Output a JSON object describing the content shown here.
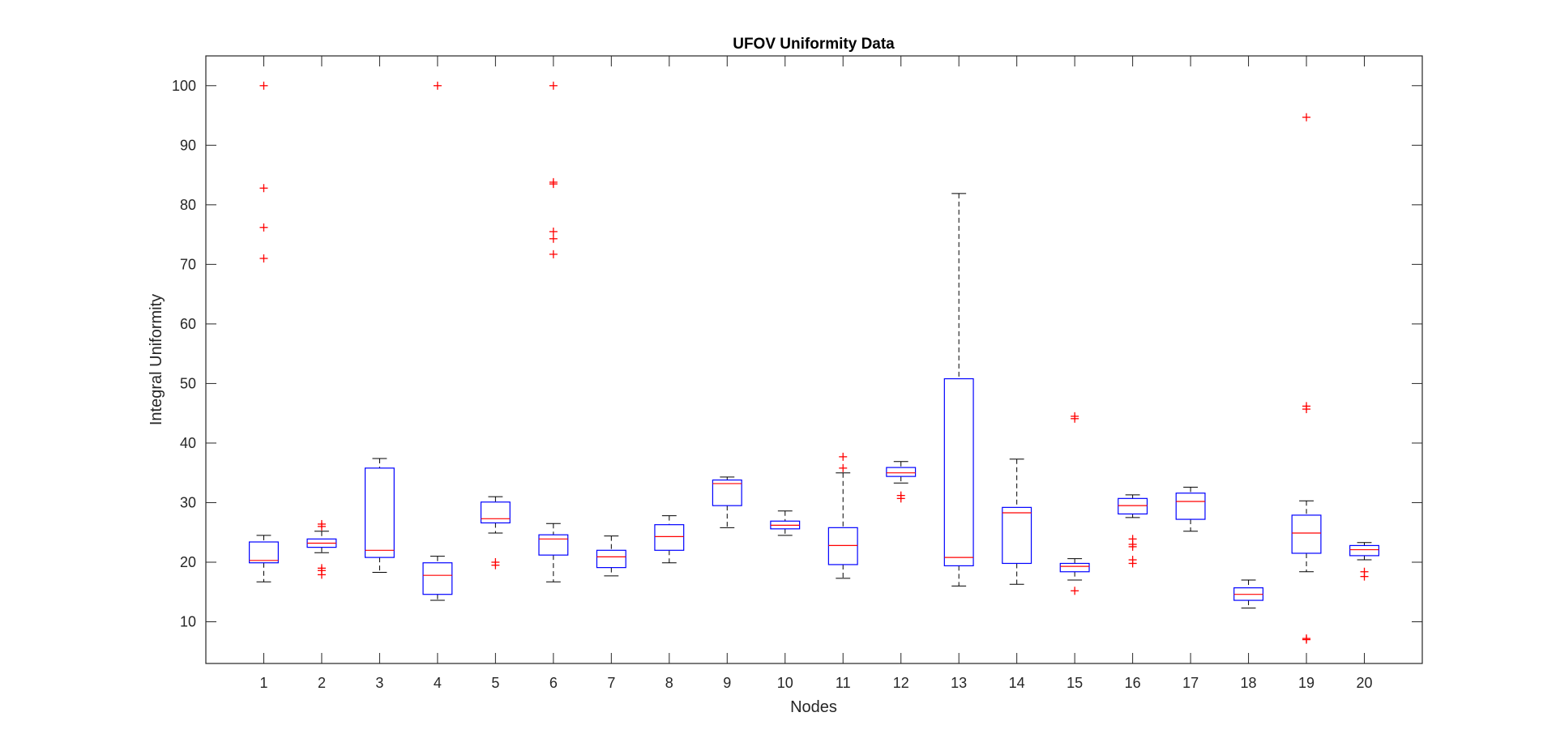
{
  "chart_data": {
    "type": "boxplot",
    "title": "UFOV Uniformity Data",
    "xlabel": "Nodes",
    "ylabel": "Integral Uniformity",
    "ylim": [
      3,
      105
    ],
    "yticks": [
      10,
      20,
      30,
      40,
      50,
      60,
      70,
      80,
      90,
      100
    ],
    "categories": [
      "1",
      "2",
      "3",
      "4",
      "5",
      "6",
      "7",
      "8",
      "9",
      "10",
      "11",
      "12",
      "13",
      "14",
      "15",
      "16",
      "17",
      "18",
      "19",
      "20"
    ],
    "grid": false,
    "colors": {
      "box": "#0000ff",
      "median": "#ff0000",
      "whisker": "#000000",
      "outlier": "#ff0000",
      "axis": "#262626"
    },
    "boxes": [
      {
        "node": "1",
        "lower_whisker": 16.7,
        "q1": 19.9,
        "median": 20.3,
        "q3": 23.4,
        "upper_whisker": 24.5,
        "outliers": [
          100,
          82.8,
          76.2,
          71.0
        ]
      },
      {
        "node": "2",
        "lower_whisker": 21.6,
        "q1": 22.5,
        "median": 23.2,
        "q3": 23.9,
        "upper_whisker": 25.2,
        "outliers": [
          26.4,
          26.0,
          19.0,
          18.6,
          17.9
        ]
      },
      {
        "node": "3",
        "lower_whisker": 18.3,
        "q1": 20.8,
        "median": 22.0,
        "q3": 35.8,
        "upper_whisker": 37.4,
        "outliers": []
      },
      {
        "node": "4",
        "lower_whisker": 13.6,
        "q1": 14.6,
        "median": 17.8,
        "q3": 19.9,
        "upper_whisker": 21.0,
        "outliers": [
          100
        ]
      },
      {
        "node": "5",
        "lower_whisker": 24.9,
        "q1": 26.6,
        "median": 27.3,
        "q3": 30.1,
        "upper_whisker": 31.0,
        "outliers": [
          20.0,
          19.5
        ]
      },
      {
        "node": "6",
        "lower_whisker": 16.7,
        "q1": 21.2,
        "median": 23.9,
        "q3": 24.6,
        "upper_whisker": 26.5,
        "outliers": [
          100,
          83.8,
          83.5,
          75.5,
          74.3,
          71.7
        ]
      },
      {
        "node": "7",
        "lower_whisker": 17.7,
        "q1": 19.1,
        "median": 20.9,
        "q3": 22.0,
        "upper_whisker": 24.4,
        "outliers": []
      },
      {
        "node": "8",
        "lower_whisker": 19.9,
        "q1": 22.0,
        "median": 24.3,
        "q3": 26.3,
        "upper_whisker": 27.8,
        "outliers": []
      },
      {
        "node": "9",
        "lower_whisker": 25.8,
        "q1": 29.5,
        "median": 33.2,
        "q3": 33.8,
        "upper_whisker": 34.3,
        "outliers": []
      },
      {
        "node": "10",
        "lower_whisker": 24.5,
        "q1": 25.6,
        "median": 26.2,
        "q3": 26.9,
        "upper_whisker": 28.6,
        "outliers": []
      },
      {
        "node": "11",
        "lower_whisker": 17.3,
        "q1": 19.6,
        "median": 22.8,
        "q3": 25.8,
        "upper_whisker": 35.0,
        "outliers": [
          37.7,
          35.8
        ]
      },
      {
        "node": "12",
        "lower_whisker": 33.3,
        "q1": 34.4,
        "median": 35.0,
        "q3": 35.9,
        "upper_whisker": 36.9,
        "outliers": [
          31.2,
          30.7
        ]
      },
      {
        "node": "13",
        "lower_whisker": 16.0,
        "q1": 19.4,
        "median": 20.8,
        "q3": 50.8,
        "upper_whisker": 81.9,
        "outliers": []
      },
      {
        "node": "14",
        "lower_whisker": 16.3,
        "q1": 19.8,
        "median": 28.3,
        "q3": 29.2,
        "upper_whisker": 37.3,
        "outliers": []
      },
      {
        "node": "15",
        "lower_whisker": 17.0,
        "q1": 18.4,
        "median": 19.3,
        "q3": 19.8,
        "upper_whisker": 20.6,
        "outliers": [
          44.5,
          44.1,
          15.2
        ]
      },
      {
        "node": "16",
        "lower_whisker": 27.5,
        "q1": 28.1,
        "median": 29.5,
        "q3": 30.7,
        "upper_whisker": 31.3,
        "outliers": [
          23.9,
          23.0,
          22.6,
          20.4,
          19.8
        ]
      },
      {
        "node": "17",
        "lower_whisker": 25.2,
        "q1": 27.2,
        "median": 30.2,
        "q3": 31.6,
        "upper_whisker": 32.6,
        "outliers": []
      },
      {
        "node": "18",
        "lower_whisker": 12.3,
        "q1": 13.6,
        "median": 14.6,
        "q3": 15.7,
        "upper_whisker": 17.0,
        "outliers": []
      },
      {
        "node": "19",
        "lower_whisker": 18.4,
        "q1": 21.5,
        "median": 24.9,
        "q3": 27.9,
        "upper_whisker": 30.3,
        "outliers": [
          94.7,
          46.2,
          45.7,
          7.2,
          7.0
        ]
      },
      {
        "node": "20",
        "lower_whisker": 20.4,
        "q1": 21.1,
        "median": 22.1,
        "q3": 22.8,
        "upper_whisker": 23.3,
        "outliers": [
          18.4,
          17.6
        ]
      }
    ]
  }
}
